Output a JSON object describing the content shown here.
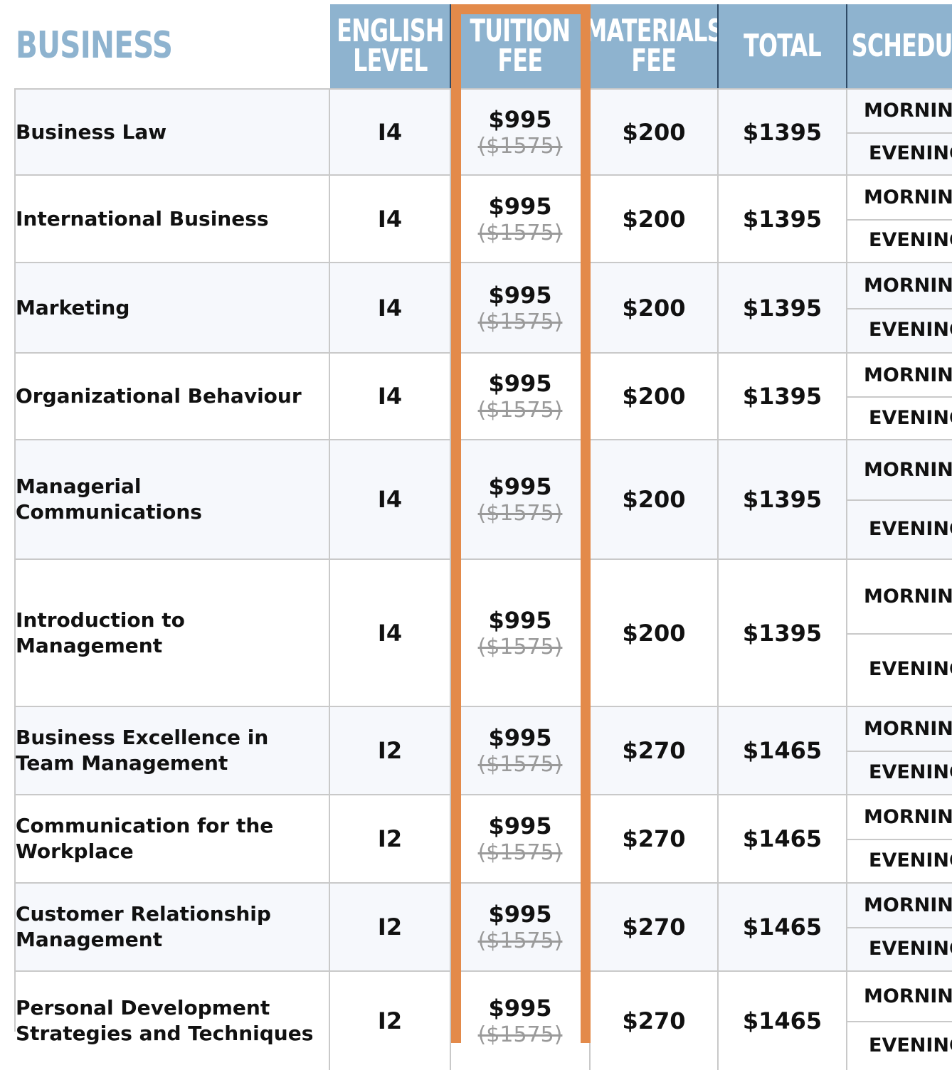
{
  "section": {
    "title": "BUSINESS"
  },
  "headers": {
    "english_level": "ENGLISH\nLEVEL",
    "tuition_fee": "TUITION\nFEE",
    "materials_fee": "MATERIALS\nFEE",
    "total": "TOTAL",
    "schedule": "SCHEDULE"
  },
  "colors": {
    "header_bg": "#8eb3cf",
    "highlight": "#e38a4a",
    "title": "#8eb3cf"
  },
  "rows": [
    {
      "name": "Business Law",
      "level": "I4",
      "tuition": "$995",
      "tuition_old": "($1575)",
      "materials": "$200",
      "total": "$1395",
      "morning": "MORNING",
      "evening": "EVENING"
    },
    {
      "name": "International Business",
      "level": "I4",
      "tuition": "$995",
      "tuition_old": "($1575)",
      "materials": "$200",
      "total": "$1395",
      "morning": "MORNING",
      "evening": "EVENING"
    },
    {
      "name": "Marketing",
      "level": "I4",
      "tuition": "$995",
      "tuition_old": "($1575)",
      "materials": "$200",
      "total": "$1395",
      "morning": "MORNING",
      "evening": "EVENING"
    },
    {
      "name": "Organizational Behaviour",
      "level": "I4",
      "tuition": "$995",
      "tuition_old": "($1575)",
      "materials": "$200",
      "total": "$1395",
      "morning": "MORNING",
      "evening": "EVENING"
    },
    {
      "name": "Managerial Communications",
      "level": "I4",
      "tuition": "$995",
      "tuition_old": "($1575)",
      "materials": "$200",
      "total": "$1395",
      "morning": "MORNING",
      "evening": "EVENING"
    },
    {
      "name": "Introduction to Management",
      "level": "I4",
      "tuition": "$995",
      "tuition_old": "($1575)",
      "materials": "$200",
      "total": "$1395",
      "morning": "MORNING",
      "evening": "EVENING"
    },
    {
      "name": "Business Excellence in Team Management",
      "level": "I2",
      "tuition": "$995",
      "tuition_old": "($1575)",
      "materials": "$270",
      "total": "$1465",
      "morning": "MORNING",
      "evening": "EVENING"
    },
    {
      "name": "Communication for the Workplace",
      "level": "I2",
      "tuition": "$995",
      "tuition_old": "($1575)",
      "materials": "$270",
      "total": "$1465",
      "morning": "MORNING",
      "evening": "EVENING"
    },
    {
      "name": "Customer Relationship Management",
      "level": "I2",
      "tuition": "$995",
      "tuition_old": "($1575)",
      "materials": "$270",
      "total": "$1465",
      "morning": "MORNING",
      "evening": "EVENING"
    },
    {
      "name": "Personal Development Strategies and Techniques",
      "level": "I2",
      "tuition": "$995",
      "tuition_old": "($1575)",
      "materials": "$270",
      "total": "$1465",
      "morning": "MORNING",
      "evening": "EVENING"
    }
  ]
}
